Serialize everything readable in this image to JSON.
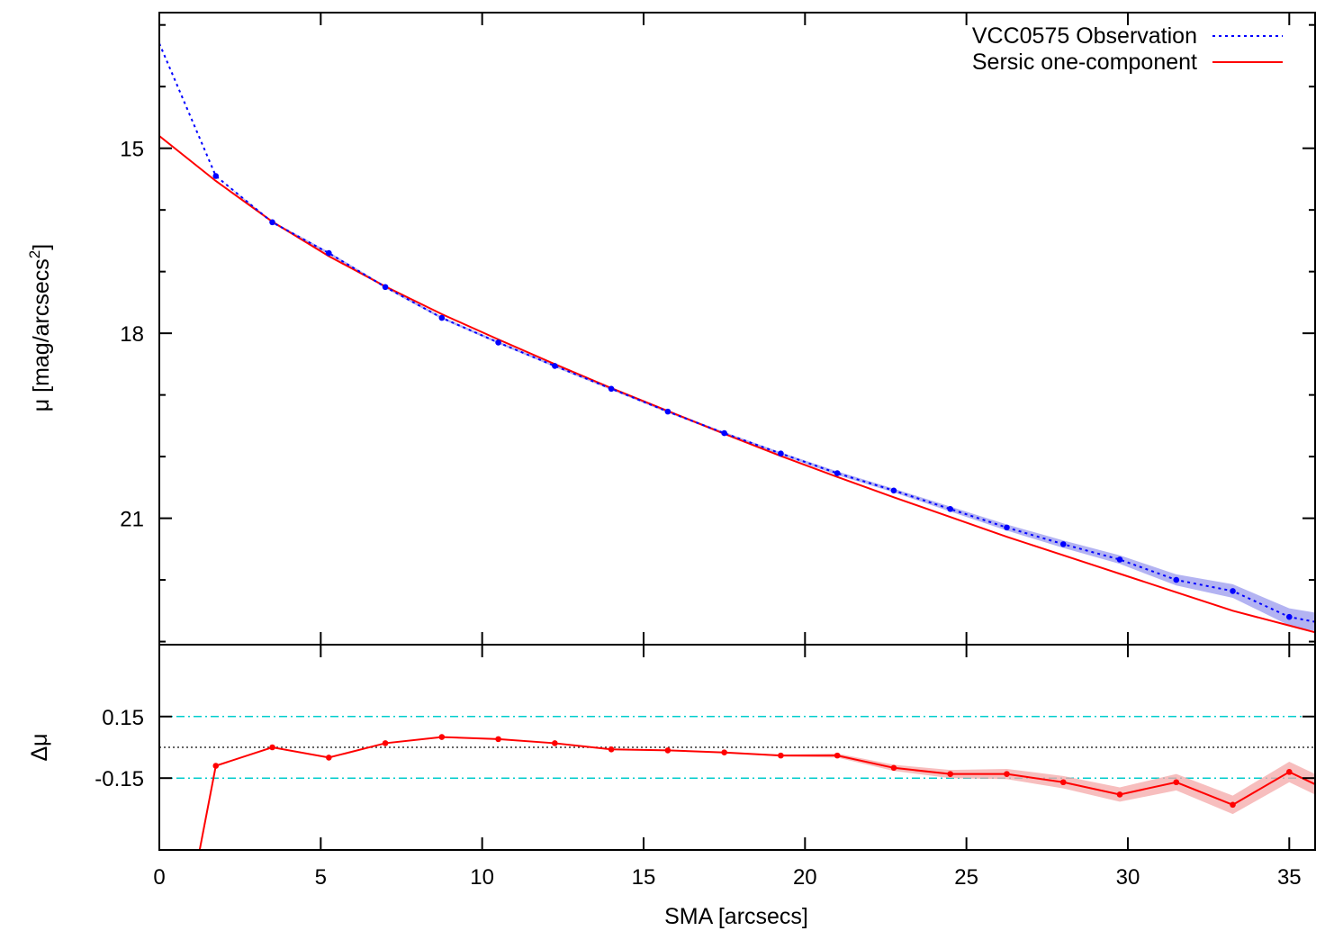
{
  "chart_data": [
    {
      "type": "line",
      "panel": "top",
      "xlabel": "",
      "ylabel_main": "μ [mag/arcsecs",
      "ylabel_sup": "2",
      "ylabel_tail": "]",
      "xlim": [
        0,
        35.8
      ],
      "ylim": [
        12.8,
        23.05
      ],
      "y_inverted": true,
      "yticks": [
        15,
        18,
        21
      ],
      "ytick_labels": [
        "15",
        "18",
        "21"
      ],
      "y_minor_ticks": [
        13,
        14,
        16,
        17,
        19,
        20,
        22,
        23
      ],
      "xticks": [
        0,
        5,
        10,
        15,
        20,
        25,
        30,
        35
      ],
      "legend": {
        "position": "top-right",
        "entries": [
          {
            "label": "VCC0575 Observation",
            "style": "dotted",
            "color": "#0000ff"
          },
          {
            "label": "Sersic one-component",
            "style": "solid",
            "color": "#ff0000"
          }
        ]
      },
      "series": [
        {
          "name": "VCC0575 Observation",
          "color": "#0000ff",
          "band_color": "#9999ee",
          "x": [
            0.0,
            1.75,
            3.5,
            5.25,
            7.0,
            8.75,
            10.5,
            12.25,
            14.0,
            15.75,
            17.5,
            19.25,
            21.0,
            22.75,
            24.5,
            26.25,
            28.0,
            29.75,
            31.5,
            33.25,
            35.0,
            35.8
          ],
          "y": [
            13.3,
            15.45,
            16.2,
            16.7,
            17.25,
            17.75,
            18.15,
            18.53,
            18.9,
            19.27,
            19.62,
            19.95,
            20.27,
            20.55,
            20.85,
            21.15,
            21.42,
            21.67,
            22.0,
            22.18,
            22.6,
            22.68
          ],
          "err": [
            0,
            0,
            0.02,
            0.02,
            0.02,
            0.02,
            0.02,
            0.02,
            0.02,
            0.02,
            0.02,
            0.02,
            0.03,
            0.03,
            0.04,
            0.05,
            0.06,
            0.07,
            0.09,
            0.11,
            0.14,
            0.15
          ]
        },
        {
          "name": "Sersic one-component",
          "color": "#ff0000",
          "x": [
            0.0,
            1.75,
            3.5,
            5.25,
            7.0,
            8.75,
            10.5,
            12.25,
            14.0,
            15.75,
            17.5,
            19.25,
            21.0,
            22.75,
            24.5,
            26.25,
            28.0,
            29.75,
            31.5,
            33.25,
            35.0,
            35.8
          ],
          "y": [
            14.8,
            15.53,
            16.19,
            16.75,
            17.24,
            17.69,
            18.1,
            18.5,
            18.89,
            19.26,
            19.63,
            19.99,
            20.33,
            20.66,
            20.98,
            21.3,
            21.6,
            21.9,
            22.2,
            22.5,
            22.74,
            22.85
          ]
        }
      ]
    },
    {
      "type": "line",
      "panel": "bottom",
      "xlabel": "SMA [arcsecs]",
      "ylabel": "Δμ",
      "xlim": [
        0,
        35.8
      ],
      "ylim": [
        -0.5,
        0.5
      ],
      "yticks": [
        0.15,
        -0.15
      ],
      "ytick_labels": [
        "0.15",
        "-0.15"
      ],
      "xticks": [
        0,
        5,
        10,
        15,
        20,
        25,
        30,
        35
      ],
      "xtick_labels": [
        "0",
        "5",
        "10",
        "15",
        "20",
        "25",
        "30",
        "35"
      ],
      "reference_lines": [
        {
          "y": 0.15,
          "style": "dash-dot",
          "color": "#00cccc"
        },
        {
          "y": -0.15,
          "style": "dash-dot",
          "color": "#00cccc"
        },
        {
          "y": 0.0,
          "style": "dotted",
          "color": "#333333"
        }
      ],
      "series": [
        {
          "name": "",
          "color": "#ff0000",
          "band_color": "#f4a8a8",
          "x": [
            1.25,
            1.75,
            3.5,
            5.25,
            7.0,
            8.75,
            10.5,
            12.25,
            14.0,
            15.75,
            17.5,
            19.25,
            21.0,
            22.75,
            24.5,
            26.25,
            28.0,
            29.75,
            31.5,
            33.25,
            35.0,
            35.8
          ],
          "y": [
            -0.5,
            -0.09,
            0.0,
            -0.05,
            0.02,
            0.05,
            0.04,
            0.02,
            -0.01,
            -0.015,
            -0.025,
            -0.04,
            -0.04,
            -0.1,
            -0.13,
            -0.13,
            -0.17,
            -0.23,
            -0.17,
            -0.28,
            -0.12,
            -0.18
          ],
          "err": [
            0,
            0,
            0,
            0,
            0,
            0,
            0,
            0,
            0,
            0,
            0,
            0.005,
            0.01,
            0.015,
            0.02,
            0.025,
            0.03,
            0.035,
            0.04,
            0.045,
            0.05,
            0.05
          ]
        }
      ]
    }
  ]
}
